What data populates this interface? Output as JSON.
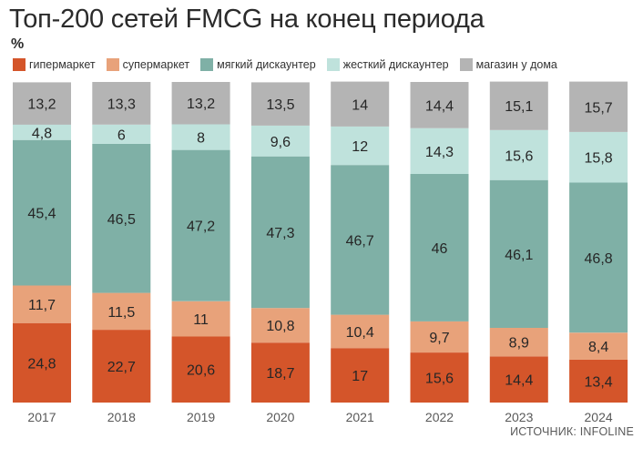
{
  "title": "Топ-200 сетей FMCG на конец периода",
  "unit": "%",
  "source": "ИСТОЧНИК: INFOLINE",
  "colors": {
    "гипермаркет": "#d4552a",
    "супермаркет": "#e8a27a",
    "мягкий дискаунтер": "#7fb0a6",
    "жесткий дискаунтер": "#bfe2dc",
    "магазин у дома": "#b4b4b4"
  },
  "chart_data": {
    "type": "bar",
    "stacked": true,
    "categories": [
      "2017",
      "2018",
      "2019",
      "2020",
      "2021",
      "2022",
      "2023",
      "2024"
    ],
    "series": [
      {
        "name": "гипермаркет",
        "values": [
          24.8,
          22.7,
          20.6,
          18.7,
          17,
          15.6,
          14.4,
          13.4
        ],
        "labels": [
          "24,8",
          "22,7",
          "20,6",
          "18,7",
          "17",
          "15,6",
          "14,4",
          "13,4"
        ]
      },
      {
        "name": "супермаркет",
        "values": [
          11.7,
          11.5,
          11,
          10.8,
          10.4,
          9.7,
          8.9,
          8.4
        ],
        "labels": [
          "11,7",
          "11,5",
          "11",
          "10,8",
          "10,4",
          "9,7",
          "8,9",
          "8,4"
        ]
      },
      {
        "name": "мягкий дискаунтер",
        "values": [
          45.4,
          46.5,
          47.2,
          47.3,
          46.7,
          46,
          46.1,
          46.8
        ],
        "labels": [
          "45,4",
          "46,5",
          "47,2",
          "47,3",
          "46,7",
          "46",
          "46,1",
          "46,8"
        ]
      },
      {
        "name": "жесткий дискаунтер",
        "values": [
          4.8,
          6,
          8,
          9.6,
          12,
          14.3,
          15.6,
          15.8
        ],
        "labels": [
          "4,8",
          "6",
          "8",
          "9,6",
          "12",
          "14,3",
          "15,6",
          "15,8"
        ]
      },
      {
        "name": "магазин у дома",
        "values": [
          13.2,
          13.3,
          13.2,
          13.5,
          14,
          14.4,
          15.1,
          15.7
        ],
        "labels": [
          "13,2",
          "13,3",
          "13,2",
          "13,5",
          "14",
          "14,4",
          "15,1",
          "15,7"
        ]
      }
    ],
    "ylim": [
      0,
      100
    ],
    "grid": false,
    "legend": "top"
  }
}
